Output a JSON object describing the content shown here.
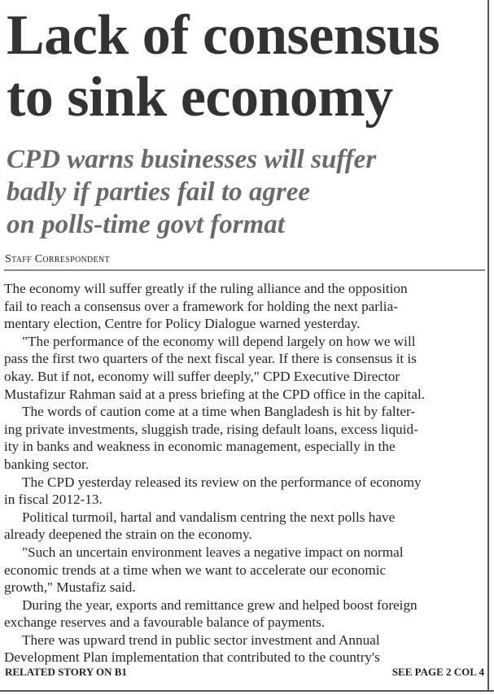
{
  "headline": [
    "Lack of consensus",
    "to sink economy"
  ],
  "subhead": [
    "CPD warns businesses will suffer",
    "badly if parties fail to agree",
    "on polls-time govt format"
  ],
  "byline": "Staff Correspondent",
  "paragraphs": [
    [
      "The economy will suffer greatly if the ruling alliance and the opposition",
      "fail to reach a consensus over a framework for holding the next parlia-",
      "mentary election, Centre for Policy Dialogue warned yesterday."
    ],
    [
      "\"The performance of the economy will depend largely on how we will",
      "pass the first two quarters of the next fiscal year. If there is consensus it is",
      "okay. But if not, economy will suffer deeply,\" CPD Executive Director",
      "Mustafizur Rahman said at a press briefing at the CPD office in the capital."
    ],
    [
      "The words of caution come at a time when Bangladesh is hit by falter-",
      "ing private investments, sluggish trade, rising default loans, excess liquid-",
      "ity in banks and weakness in economic management, especially in the",
      "banking sector."
    ],
    [
      "The CPD yesterday released its review on the performance of economy",
      "in fiscal 2012-13."
    ],
    [
      "Political turmoil, hartal and vandalism centring the next polls have",
      "already deepened the strain on the economy."
    ],
    [
      "\"Such an uncertain environment leaves a negative impact on normal",
      "economic trends at a time when we want to accelerate our economic",
      "growth,\" Mustafiz said."
    ],
    [
      "During the year, exports and remittance grew and helped boost foreign",
      "exchange reserves and a favourable balance of payments."
    ],
    [
      "There was upward trend in public sector investment and Annual",
      "Development Plan implementation that contributed to the country's"
    ]
  ],
  "footer": {
    "related": "RELATED STORY ON B1",
    "jump": "SEE PAGE 2 COL 4"
  }
}
